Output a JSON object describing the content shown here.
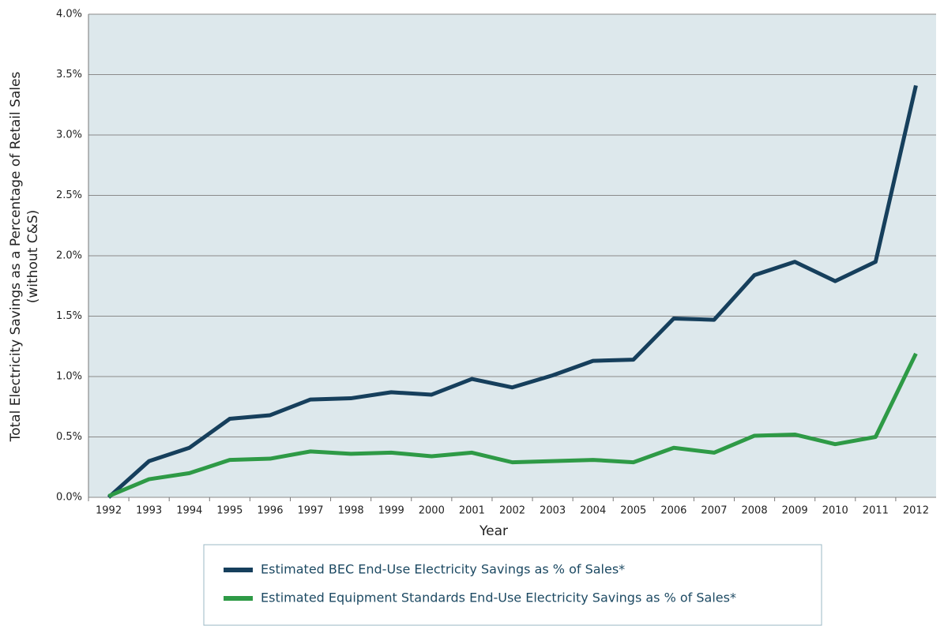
{
  "chart_data": {
    "type": "line",
    "xlabel": "Year",
    "ylabel": [
      "Total Electricity Savings as a Percentage of Retail Sales",
      "(without C&S)"
    ],
    "categories": [
      "1992",
      "1993",
      "1994",
      "1995",
      "1996",
      "1997",
      "1998",
      "1999",
      "2000",
      "2001",
      "2002",
      "2003",
      "2004",
      "2005",
      "2006",
      "2007",
      "2008",
      "2009",
      "2010",
      "2011",
      "2012"
    ],
    "series": [
      {
        "name": "Estimated BEC End-Use Electricity Savings as % of Sales*",
        "color": "#163f5c",
        "values": [
          0.0,
          0.3,
          0.41,
          0.65,
          0.68,
          0.81,
          0.82,
          0.87,
          0.85,
          0.98,
          0.91,
          1.01,
          1.13,
          1.14,
          1.48,
          1.47,
          1.84,
          1.95,
          1.79,
          1.95,
          3.41
        ]
      },
      {
        "name": "Estimated Equipment Standards End-Use Electricity Savings as % of Sales*",
        "color": "#2e9a46",
        "values": [
          0.01,
          0.15,
          0.2,
          0.31,
          0.32,
          0.38,
          0.36,
          0.37,
          0.34,
          0.37,
          0.29,
          0.3,
          0.31,
          0.29,
          0.41,
          0.37,
          0.51,
          0.52,
          0.44,
          0.5,
          1.19
        ]
      }
    ],
    "ylim": [
      0,
      4
    ],
    "yticks": [
      {
        "value": 0,
        "label": "0.0%"
      },
      {
        "value": 0.5,
        "label": "0.5%"
      },
      {
        "value": 1,
        "label": "1.0%"
      },
      {
        "value": 1.5,
        "label": "1.5%"
      },
      {
        "value": 2,
        "label": "2.0%"
      },
      {
        "value": 2.5,
        "label": "2.5%"
      },
      {
        "value": 3,
        "label": "3.0%"
      },
      {
        "value": 3.5,
        "label": "3.5%"
      },
      {
        "value": 4,
        "label": "4.0%"
      }
    ],
    "grid": true
  }
}
